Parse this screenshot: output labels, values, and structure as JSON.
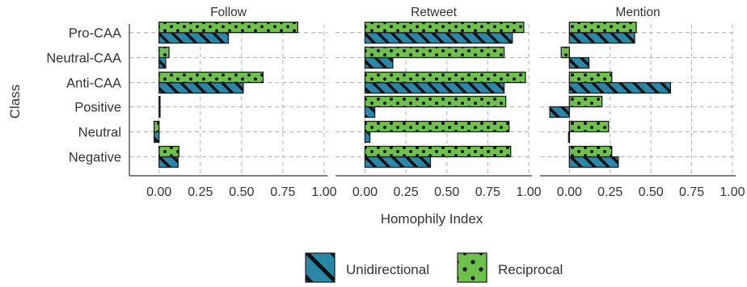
{
  "chart_data": {
    "type": "bar",
    "orientation": "horizontal",
    "facets": [
      "Follow",
      "Retweet",
      "Mention"
    ],
    "categories": [
      "Pro-CAA",
      "Neutral-CAA",
      "Anti-CAA",
      "Positive",
      "Neutral",
      "Negative"
    ],
    "series": [
      {
        "name": "Unidirectional",
        "color": "#2a87a8",
        "pattern": "stripes",
        "values": [
          [
            0.42,
            0.04,
            0.51,
            0.005,
            -0.03,
            0.115
          ],
          [
            0.9,
            0.17,
            0.85,
            0.06,
            0.03,
            0.4
          ],
          [
            0.4,
            0.12,
            0.62,
            -0.12,
            -0.005,
            0.3
          ]
        ]
      },
      {
        "name": "Reciprocal",
        "color": "#6cc24a",
        "pattern": "dots",
        "values": [
          [
            0.84,
            0.06,
            0.63,
            0.0,
            -0.03,
            0.12
          ],
          [
            0.97,
            0.85,
            0.98,
            0.86,
            0.88,
            0.89
          ],
          [
            0.41,
            -0.05,
            0.26,
            0.2,
            0.24,
            0.26
          ]
        ]
      }
    ],
    "xlabel": "Homophily Index",
    "ylabel": "Class",
    "xlim": [
      -0.18,
      1.02
    ],
    "xticks": [
      "0.00",
      "0.25",
      "0.50",
      "0.75",
      "1.00"
    ],
    "grid": true,
    "legend_position": "bottom"
  }
}
